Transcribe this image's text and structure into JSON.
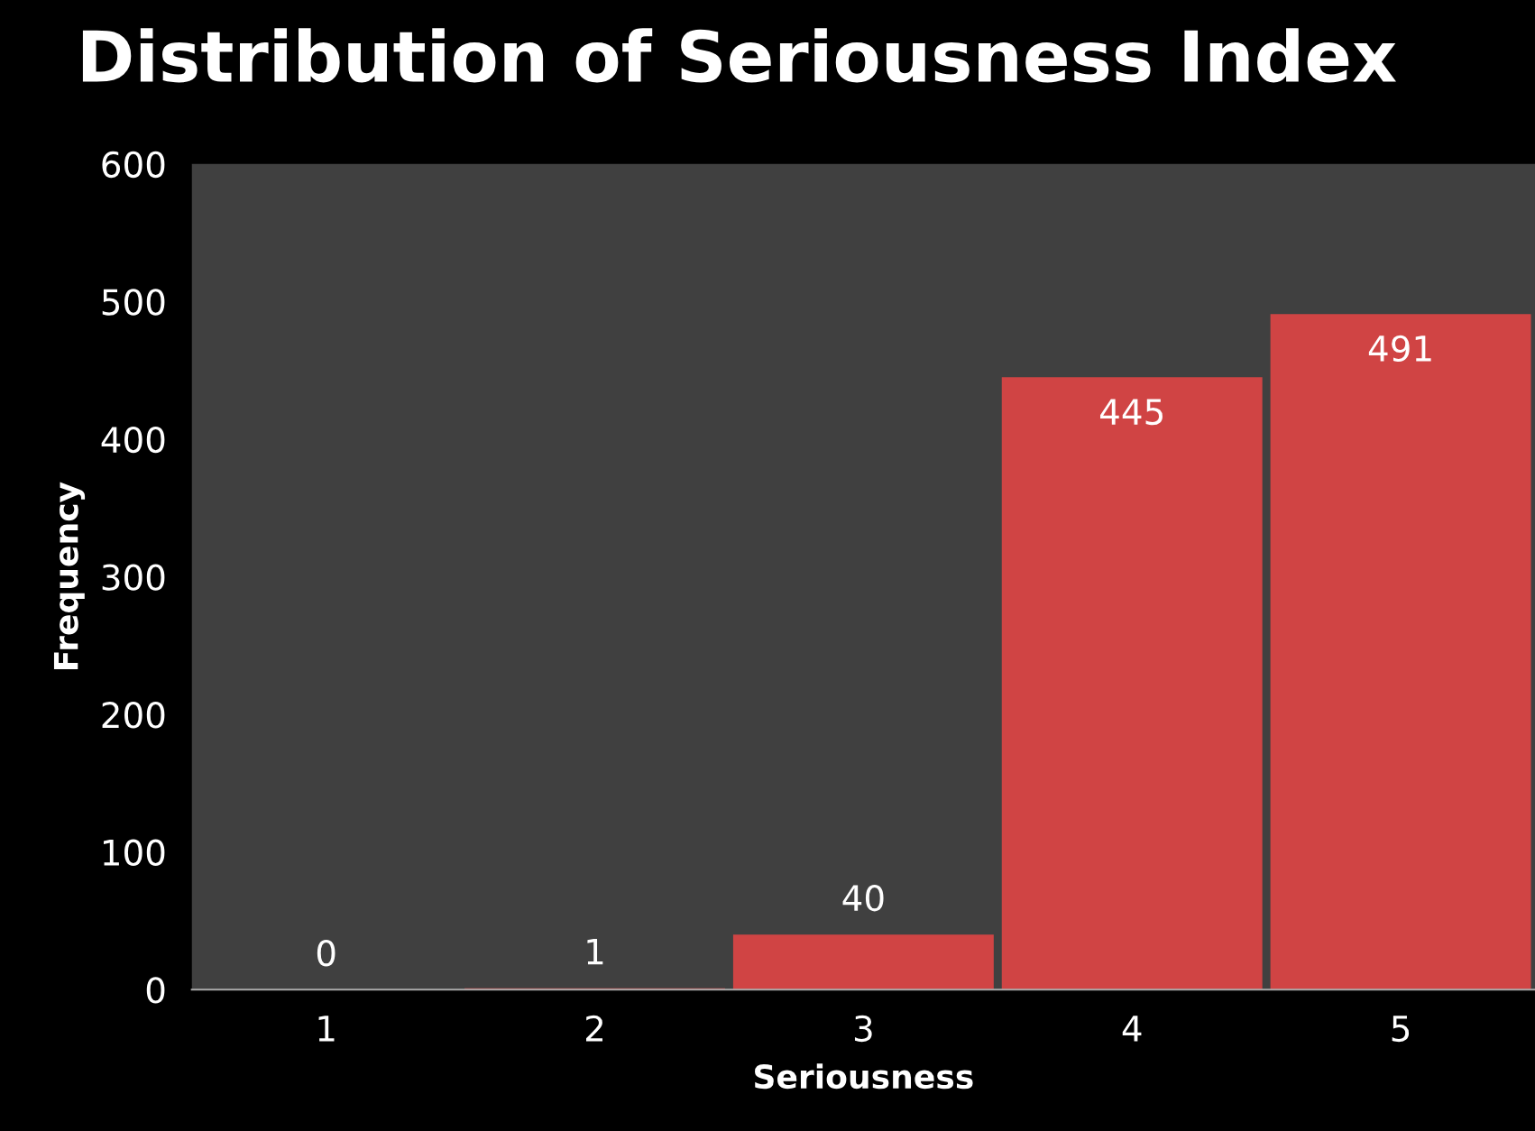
{
  "chart_data": {
    "type": "bar",
    "title": "Distribution of Seriousness Index",
    "xlabel": "Seriousness",
    "ylabel": "Frequency",
    "categories": [
      "1",
      "2",
      "3",
      "4",
      "5"
    ],
    "values": [
      0,
      1,
      40,
      445,
      491
    ],
    "color": "#d04444",
    "ylim": [
      0,
      600
    ],
    "yticks": [
      0,
      100,
      200,
      300,
      400,
      500,
      600
    ],
    "grid": false,
    "data_labels": true
  }
}
